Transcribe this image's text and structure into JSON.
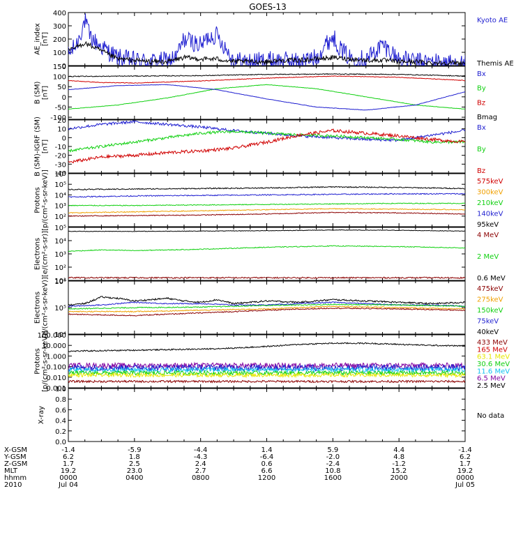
{
  "title": "GOES-13",
  "colors": {
    "black": "#000000",
    "blue": "#1f1fd0",
    "red": "#d00000",
    "green": "#10d010",
    "orange": "#f0a000",
    "dark_red": "#8b0000",
    "purple": "#8000a0",
    "yellow": "#e8e800",
    "light_blue": "#10c0f0"
  },
  "time_axis": {
    "row_labels": [
      "X-GSM",
      "Y-GSM",
      "Z-GSM",
      "MLT",
      "hhmm",
      "2010"
    ],
    "columns": [
      [
        "-1.4",
        "6.2",
        "1.7",
        "19.2",
        "0000",
        "Jul 04"
      ],
      [
        "-5.9",
        "1.8",
        "2.5",
        "23.0",
        "0400",
        ""
      ],
      [
        "-4.4",
        "-4.3",
        "2.4",
        "2.7",
        "0800",
        ""
      ],
      [
        "1.4",
        "-6.4",
        "0.6",
        "6.6",
        "1200",
        ""
      ],
      [
        "5.9",
        "-2.0",
        "-2.4",
        "10.8",
        "1600",
        ""
      ],
      [
        "4.4",
        "4.8",
        "-1.2",
        "15.2",
        "2000",
        ""
      ],
      [
        "-1.4",
        "6.2",
        "1.7",
        "19.2",
        "0000",
        "Jul 05"
      ]
    ]
  },
  "chart_data": [
    {
      "type": "line",
      "ylabel": "AE_index\n[nT]",
      "ylim": [
        0,
        400
      ],
      "yticks": [
        "400",
        "300",
        "200",
        "100",
        "0"
      ],
      "legend": [
        {
          "label": "Kyoto AE",
          "color": "#1f1fd0"
        },
        {
          "label": "Themis AE",
          "color": "#000000"
        }
      ],
      "series": [
        {
          "name": "Kyoto AE",
          "color": "#1f1fd0",
          "x": [
            0,
            0.5,
            1,
            1.3,
            1.8,
            2.5,
            3,
            4,
            5,
            6,
            6.5,
            7,
            7.5,
            8,
            8.5,
            9,
            10,
            11,
            12,
            13,
            14,
            15,
            15.5,
            16,
            16.5,
            17,
            18,
            18.5,
            19,
            20,
            21,
            22,
            23,
            24
          ],
          "values": [
            80,
            160,
            340,
            220,
            160,
            100,
            60,
            40,
            30,
            40,
            60,
            200,
            180,
            150,
            220,
            230,
            40,
            30,
            40,
            40,
            30,
            60,
            150,
            220,
            120,
            60,
            50,
            100,
            160,
            50,
            30,
            30,
            20,
            10
          ],
          "noise": 70
        },
        {
          "name": "Themis AE",
          "color": "#000000",
          "x": [
            0,
            1,
            2,
            3,
            4,
            5,
            6,
            7,
            8,
            9,
            10,
            11,
            12,
            13,
            14,
            15,
            16,
            17,
            18,
            19,
            20,
            21,
            22,
            23,
            24
          ],
          "values": [
            110,
            170,
            110,
            50,
            40,
            30,
            30,
            60,
            50,
            50,
            30,
            30,
            30,
            40,
            40,
            50,
            60,
            50,
            40,
            40,
            30,
            30,
            20,
            20,
            20
          ],
          "noise": 18
        }
      ]
    },
    {
      "type": "line",
      "ylabel": "B (SM)\n[nT]",
      "ylim": [
        -110,
        150
      ],
      "yticks": [
        "150",
        "100",
        "50",
        "0",
        "-50",
        "-100"
      ],
      "legend": [
        {
          "label": "Bx",
          "color": "#1f1fd0"
        },
        {
          "label": "By",
          "color": "#10d010"
        },
        {
          "label": "Bz",
          "color": "#d00000"
        },
        {
          "label": "Bmag",
          "color": "#000000"
        }
      ],
      "series": [
        {
          "name": "Bmag",
          "color": "#000000",
          "x": [
            0,
            4,
            8,
            12,
            16,
            20,
            24
          ],
          "values": [
            100,
            102,
            104,
            110,
            112,
            110,
            102
          ],
          "noise": 2
        },
        {
          "name": "Bz",
          "color": "#d00000",
          "x": [
            0,
            2,
            4,
            8,
            12,
            16,
            20,
            24
          ],
          "values": [
            80,
            70,
            68,
            78,
            92,
            102,
            96,
            80
          ],
          "noise": 1.5
        },
        {
          "name": "By",
          "color": "#10d010",
          "x": [
            0,
            3,
            6,
            9,
            12,
            15,
            18,
            21,
            24
          ],
          "values": [
            -60,
            -40,
            -5,
            40,
            60,
            40,
            0,
            -40,
            -60
          ],
          "noise": 1
        },
        {
          "name": "Bx",
          "color": "#1f1fd0",
          "x": [
            0,
            3,
            6,
            9,
            12,
            15,
            18,
            21,
            24
          ],
          "values": [
            35,
            55,
            60,
            35,
            -10,
            -50,
            -65,
            -40,
            25
          ],
          "noise": 1
        }
      ]
    },
    {
      "type": "line",
      "ylabel": "B (SM)-IGRF (SM)\n[nT]",
      "ylim": [
        -40,
        20
      ],
      "yticks": [
        "20",
        "10",
        "0",
        "-10",
        "-20",
        "-30",
        "-40"
      ],
      "legend": [
        {
          "label": "Bx",
          "color": "#1f1fd0"
        },
        {
          "label": "By",
          "color": "#10d010"
        },
        {
          "label": "Bz",
          "color": "#d00000"
        }
      ],
      "series": [
        {
          "name": "Bx",
          "color": "#1f1fd0",
          "x": [
            0,
            2,
            4,
            6,
            8,
            10,
            12,
            14,
            16,
            18,
            20,
            22,
            24
          ],
          "values": [
            10,
            15,
            18,
            15,
            12,
            8,
            5,
            2,
            0,
            -2,
            -3,
            3,
            8
          ],
          "noise": 1.5
        },
        {
          "name": "By",
          "color": "#10d010",
          "x": [
            0,
            2,
            4,
            6,
            8,
            10,
            12,
            14,
            16,
            18,
            20,
            22,
            24
          ],
          "values": [
            -15,
            -10,
            -5,
            0,
            5,
            7,
            5,
            3,
            2,
            0,
            -2,
            -5,
            -5
          ],
          "noise": 1.5
        },
        {
          "name": "Bz",
          "color": "#d00000",
          "x": [
            0,
            1,
            2,
            4,
            6,
            8,
            10,
            12,
            14,
            16,
            18,
            20,
            22,
            24
          ],
          "values": [
            -28,
            -25,
            -22,
            -20,
            -17,
            -15,
            -12,
            -5,
            3,
            8,
            5,
            2,
            -2,
            -5
          ],
          "noise": 1.8
        }
      ]
    },
    {
      "type": "line",
      "ylabel": "Protons\n[p/(cm²-s-sr-keV)]",
      "yscale": "log",
      "ylim": [
        1,
        6
      ],
      "yticks": [
        "10⁶",
        "10⁵",
        "10⁴",
        "10³",
        "10²"
      ],
      "legend": [
        {
          "label": "575keV",
          "color": "#d00000"
        },
        {
          "label": "300keV",
          "color": "#f0a000"
        },
        {
          "label": "210keV",
          "color": "#10d010"
        },
        {
          "label": "140keV",
          "color": "#1f1fd0"
        },
        {
          "label": "95keV",
          "color": "#000000"
        }
      ],
      "series": [
        {
          "name": "95keV",
          "color": "#000000",
          "x": [
            0,
            4,
            8,
            12,
            16,
            20,
            24
          ],
          "values": [
            4.5,
            4.55,
            4.6,
            4.65,
            4.75,
            4.7,
            4.6
          ],
          "noise": 0.05
        },
        {
          "name": "140keV",
          "color": "#1f1fd0",
          "x": [
            0,
            4,
            8,
            12,
            16,
            20,
            24
          ],
          "values": [
            3.8,
            3.9,
            3.95,
            4.0,
            4.05,
            4.1,
            4.1
          ],
          "noise": 0.05
        },
        {
          "name": "210keV",
          "color": "#10d010",
          "x": [
            0,
            4,
            8,
            12,
            16,
            20,
            24
          ],
          "values": [
            3.0,
            3.0,
            3.05,
            3.1,
            3.15,
            3.2,
            3.2
          ],
          "noise": 0.04
        },
        {
          "name": "300keV",
          "color": "#f0a000",
          "x": [
            0,
            4,
            8,
            12,
            16,
            20,
            24
          ],
          "values": [
            2.3,
            2.4,
            2.5,
            2.6,
            2.7,
            2.65,
            2.6
          ],
          "noise": 0.04
        },
        {
          "name": "575keV",
          "color": "#8b0000",
          "x": [
            0,
            4,
            8,
            12,
            16,
            20,
            24
          ],
          "values": [
            2.0,
            2.05,
            2.1,
            2.2,
            2.35,
            2.3,
            2.2
          ],
          "noise": 0.04
        }
      ]
    },
    {
      "type": "line",
      "ylabel": "Electrons\n[e/(cm²-s-sr)]",
      "yscale": "log",
      "ylim": [
        1,
        5
      ],
      "yticks": [
        "10⁵",
        "10⁴",
        "10³",
        "10²",
        "10¹"
      ],
      "legend": [
        {
          "label": "4 MeV",
          "color": "#8b0000"
        },
        {
          "label": "2 MeV",
          "color": "#10d010"
        },
        {
          "label": "0.6 MeV",
          "color": "#000000"
        }
      ],
      "series": [
        {
          "name": "0.6 MeV",
          "color": "#000000",
          "x": [
            0,
            4,
            8,
            12,
            16,
            20,
            24
          ],
          "values": [
            4.7,
            4.7,
            4.72,
            4.75,
            4.8,
            4.78,
            4.72
          ],
          "noise": 0.02
        },
        {
          "name": "2 MeV",
          "color": "#10d010",
          "x": [
            0,
            2,
            4,
            8,
            12,
            16,
            20,
            24
          ],
          "values": [
            3.2,
            3.3,
            3.25,
            3.35,
            3.5,
            3.6,
            3.55,
            3.45
          ],
          "noise": 0.03
        },
        {
          "name": "4 MeV",
          "color": "#8b0000",
          "x": [
            0,
            24
          ],
          "values": [
            1.2,
            1.2
          ],
          "noise": 0.05
        }
      ]
    },
    {
      "type": "line",
      "ylabel": "Electrons\n[e/(cm²-s-sr-keV)]",
      "yscale": "log",
      "ylim": [
        4,
        6
      ],
      "yticks": [
        "10⁶",
        "10⁵",
        "10⁴"
      ],
      "legend": [
        {
          "label": "475keV",
          "color": "#8b0000"
        },
        {
          "label": "275keV",
          "color": "#f0a000"
        },
        {
          "label": "150keV",
          "color": "#10d010"
        },
        {
          "label": "75keV",
          "color": "#1f1fd0"
        },
        {
          "label": "40keV",
          "color": "#000000"
        }
      ],
      "series": [
        {
          "name": "40keV",
          "color": "#000000",
          "x": [
            0,
            1,
            2,
            3,
            4,
            5,
            6,
            7,
            8,
            9,
            10,
            12,
            14,
            16,
            18,
            20,
            22,
            24
          ],
          "values": [
            5.1,
            5.15,
            5.4,
            5.35,
            5.25,
            5.3,
            5.35,
            5.25,
            5.2,
            5.3,
            5.15,
            5.25,
            5.2,
            5.3,
            5.25,
            5.2,
            5.15,
            5.2
          ],
          "noise": 0.03
        },
        {
          "name": "75keV",
          "color": "#1f1fd0",
          "x": [
            0,
            2,
            4,
            6,
            8,
            10,
            12,
            14,
            16,
            18,
            20,
            22,
            24
          ],
          "values": [
            5.05,
            5.1,
            5.2,
            5.15,
            5.15,
            5.1,
            5.1,
            5.15,
            5.2,
            5.15,
            5.1,
            5.1,
            5.05
          ],
          "noise": 0.02
        },
        {
          "name": "150keV",
          "color": "#10d010",
          "x": [
            0,
            4,
            8,
            12,
            16,
            20,
            24
          ],
          "values": [
            4.95,
            5.0,
            5.02,
            5.08,
            5.12,
            5.1,
            5.05
          ],
          "noise": 0.02
        },
        {
          "name": "275keV",
          "color": "#f0a000",
          "x": [
            0,
            4,
            8,
            12,
            16,
            20,
            24
          ],
          "values": [
            4.85,
            4.85,
            4.9,
            4.95,
            5.05,
            5.0,
            4.95
          ],
          "noise": 0.02
        },
        {
          "name": "475keV",
          "color": "#8b0000",
          "x": [
            0,
            4,
            8,
            12,
            16,
            20,
            24
          ],
          "values": [
            4.75,
            4.7,
            4.8,
            4.9,
            4.98,
            4.95,
            4.9
          ],
          "noise": 0.02
        }
      ]
    },
    {
      "type": "line",
      "ylabel": "Protons\n[p/(cm²-s-sr-keV)]",
      "yscale": "log",
      "ylim": [
        -3,
        2
      ],
      "yticks": [
        "100.000",
        "10.000",
        "1.000",
        "0.100",
        "0.010",
        "0.001"
      ],
      "legend": [
        {
          "label": "433 MeV",
          "color": "#8b0000"
        },
        {
          "label": "165 MeV",
          "color": "#d00000"
        },
        {
          "label": "63.1 MeV",
          "color": "#e8e800"
        },
        {
          "label": "30.6 MeV",
          "color": "#10d010"
        },
        {
          "label": "11.6 MeV",
          "color": "#10c0f0"
        },
        {
          "label": "6.5 MeV",
          "color": "#8000a0"
        },
        {
          "label": "2.5 MeV",
          "color": "#000000"
        }
      ],
      "series": [
        {
          "name": "2.5 MeV",
          "color": "#000000",
          "x": [
            0,
            2,
            4,
            6,
            8,
            10,
            12,
            14,
            16,
            18,
            20,
            22,
            24
          ],
          "values": [
            0.45,
            0.5,
            0.55,
            0.6,
            0.65,
            0.75,
            0.9,
            1.1,
            1.2,
            1.2,
            1.1,
            1.0,
            0.95
          ],
          "noise": 0.06
        },
        {
          "name": "6.5 MeV",
          "color": "#8000a0",
          "x": [
            0,
            24
          ],
          "values": [
            -0.9,
            -0.9
          ],
          "noise": 0.25
        },
        {
          "name": "11.6 MeV",
          "color": "#1f1fd0",
          "x": [
            0,
            24
          ],
          "values": [
            -1.1,
            -1.1
          ],
          "noise": 0.3
        },
        {
          "name": "30.6 MeV",
          "color": "#10c0f0",
          "x": [
            0,
            24
          ],
          "values": [
            -1.3,
            -1.3
          ],
          "noise": 0.22
        },
        {
          "name": "63.1 MeV",
          "color": "#10d010",
          "x": [
            0,
            24
          ],
          "values": [
            -1.6,
            -1.6
          ],
          "noise": 0.2
        },
        {
          "name": "165 MeV",
          "color": "#e8e800",
          "x": [
            0,
            24
          ],
          "values": [
            -1.8,
            -1.8
          ],
          "noise": 0.18
        },
        {
          "name": "433 MeV",
          "color": "#8b0000",
          "x": [
            0,
            24
          ],
          "values": [
            -2.4,
            -2.4
          ],
          "noise": 0.1
        }
      ]
    },
    {
      "type": "line",
      "ylabel": "X-ray",
      "ylim": [
        0,
        1
      ],
      "yticks": [
        "1.0",
        "0.8",
        "0.6",
        "0.4",
        "0.2",
        "0.0"
      ],
      "legend": [
        {
          "label": "No data",
          "color": "#000000"
        }
      ],
      "series": []
    }
  ]
}
